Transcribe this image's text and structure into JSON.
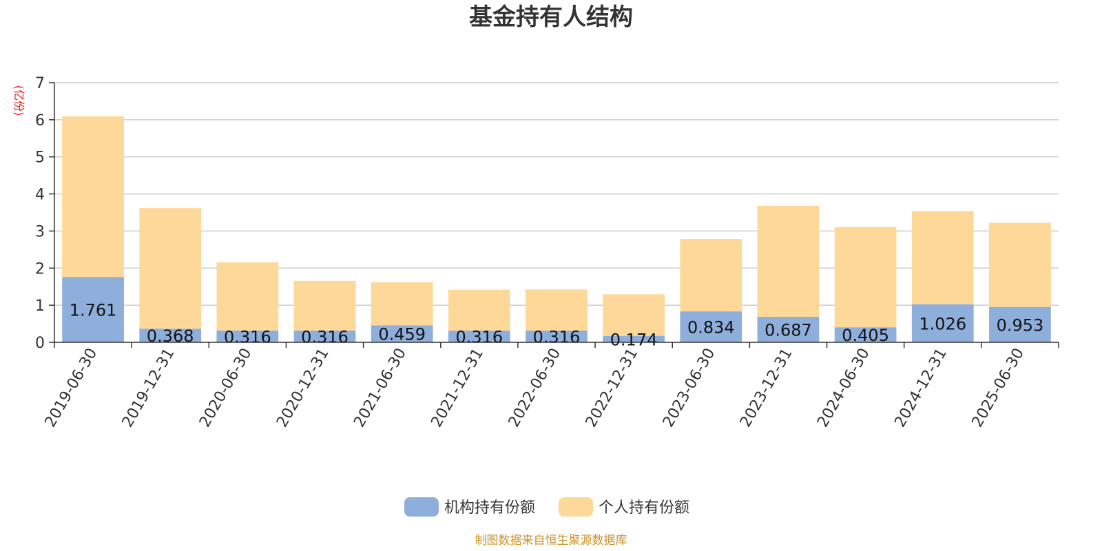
{
  "chart_data": {
    "type": "bar",
    "stacked": true,
    "title": "基金持有人结构",
    "unit_label": "(亿份)",
    "categories": [
      "2019-06-30",
      "2019-12-31",
      "2020-06-30",
      "2020-12-31",
      "2021-06-30",
      "2021-12-31",
      "2022-06-30",
      "2022-12-31",
      "2023-06-30",
      "2023-12-31",
      "2024-06-30",
      "2024-12-31",
      "2025-06-30"
    ],
    "series": [
      {
        "name": "机构持有份额",
        "color": "#8eaedc",
        "values": [
          1.761,
          0.368,
          0.316,
          0.316,
          0.459,
          0.316,
          0.316,
          0.174,
          0.834,
          0.687,
          0.405,
          1.026,
          0.953
        ],
        "labels": [
          "1.761",
          "0.368",
          "0.316",
          "0.316",
          "0.459",
          "0.316",
          "0.316",
          "0.174",
          "0.834",
          "0.687",
          "0.405",
          "1.026",
          "0.953"
        ]
      },
      {
        "name": "个人持有份额",
        "color": "#fed899",
        "values": [
          4.33,
          3.25,
          1.84,
          1.34,
          1.16,
          1.1,
          1.11,
          1.12,
          1.95,
          2.99,
          2.7,
          2.51,
          2.27
        ]
      }
    ],
    "ylim": [
      0,
      7
    ],
    "yticks": [
      "0",
      "1",
      "2",
      "3",
      "4",
      "5",
      "6",
      "7"
    ],
    "grid": true,
    "legend_position": "bottom-center",
    "source": "制图数据来自恒生聚源数据库"
  }
}
